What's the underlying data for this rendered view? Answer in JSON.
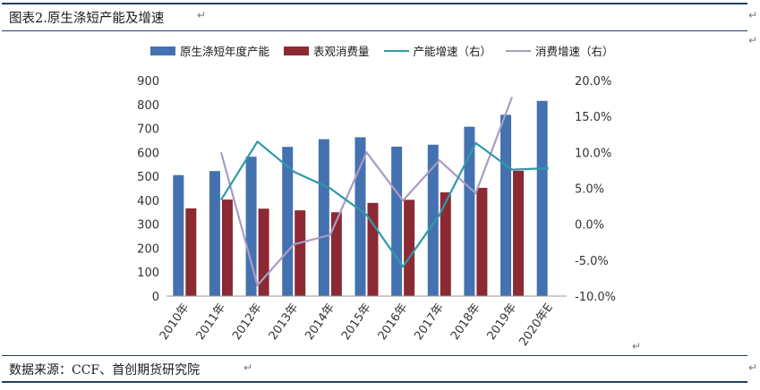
{
  "caption": {
    "title": "图表2.原生涤短产能及增速",
    "source": "数据来源：CCF、首创期货研究院"
  },
  "colors": {
    "capacity": "#4472b0",
    "consumption": "#8b2a33",
    "capacity_growth": "#2c9aa8",
    "consumption_growth": "#a99bc4",
    "rule": "#1f3f66"
  },
  "chart_data": {
    "type": "bar",
    "categories": [
      "2010年",
      "2011年",
      "2012年",
      "2013年",
      "2014年",
      "2015年",
      "2016年",
      "2017年",
      "2018年",
      "2019年",
      "2020年E"
    ],
    "series": [
      {
        "name": "原生涤短年度产能",
        "type": "bar",
        "axis": "left",
        "values": [
          505,
          522,
          582,
          623,
          655,
          663,
          624,
          632,
          707,
          757,
          815
        ]
      },
      {
        "name": "表观消费量",
        "type": "bar",
        "axis": "left",
        "values": [
          366,
          403,
          365,
          358,
          350,
          389,
          402,
          433,
          452,
          523,
          null
        ]
      },
      {
        "name": "产能增速（右）",
        "type": "line",
        "axis": "right",
        "values": [
          null,
          3.4,
          11.5,
          7.3,
          5.0,
          1.3,
          -5.9,
          1.3,
          11.3,
          7.6,
          7.8
        ]
      },
      {
        "name": "消费增速（右）",
        "type": "line",
        "axis": "right",
        "values": [
          null,
          10.0,
          -8.5,
          -2.8,
          -1.5,
          10.0,
          3.3,
          8.9,
          4.3,
          17.7,
          null
        ]
      }
    ],
    "y_left": {
      "min": 0,
      "max": 900,
      "step": 100,
      "ticks": [
        "0",
        "100",
        "200",
        "300",
        "400",
        "500",
        "600",
        "700",
        "800",
        "900"
      ]
    },
    "y_right": {
      "min": -10,
      "max": 20,
      "step": 5,
      "ticks": [
        "-10.0%",
        "-5.0%",
        "0.0%",
        "5.0%",
        "10.0%",
        "15.0%",
        "20.0%"
      ]
    },
    "legend_position": "top",
    "grid": false
  }
}
